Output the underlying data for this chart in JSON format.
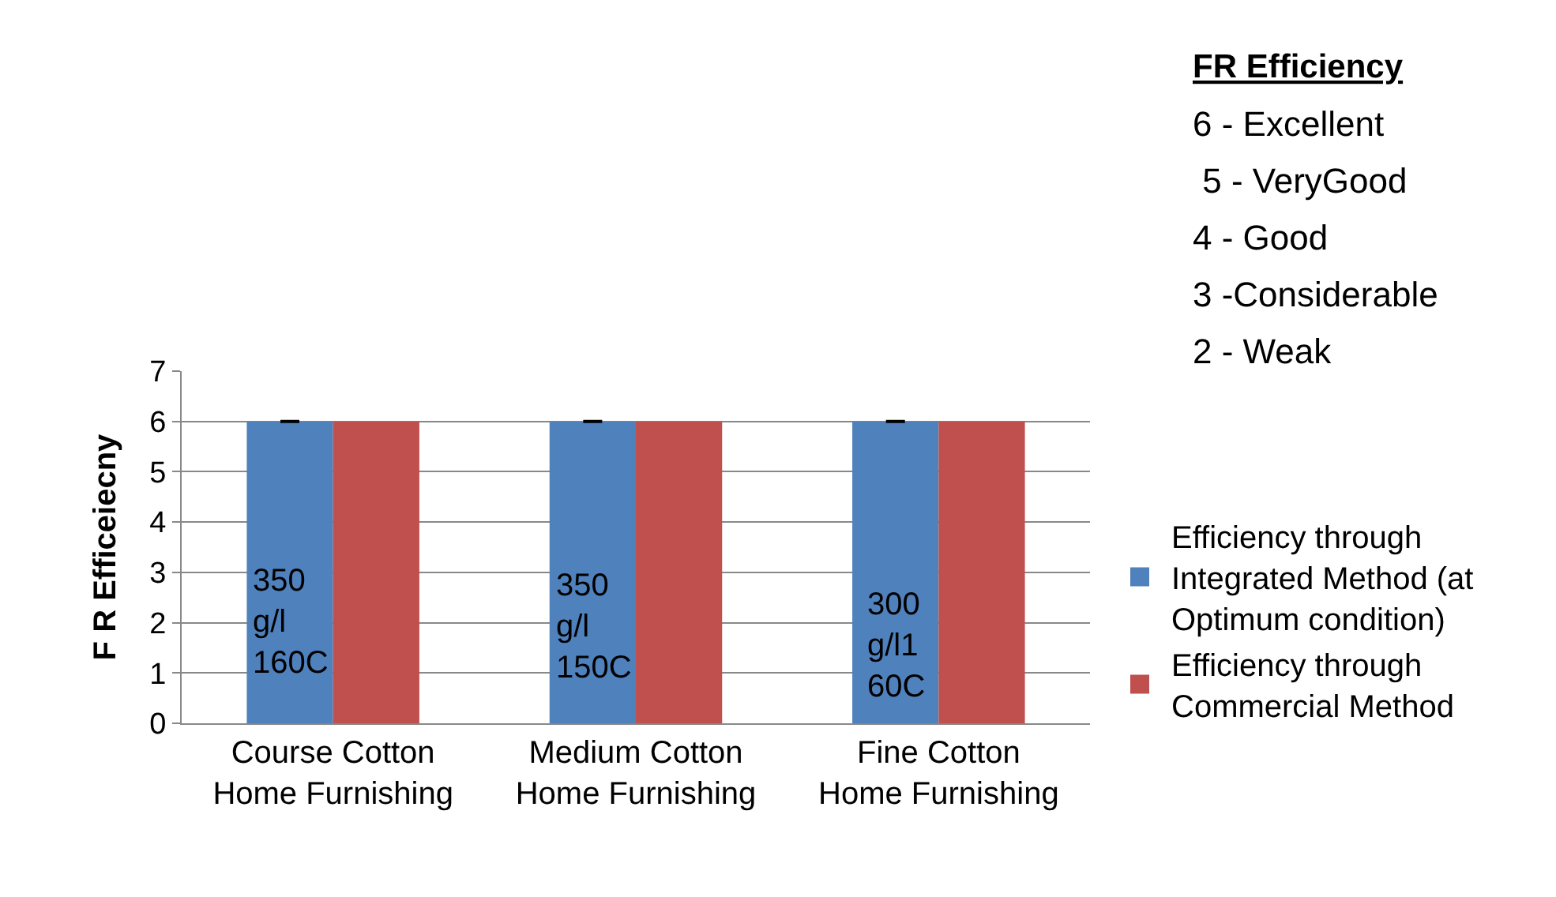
{
  "chart_data": {
    "type": "bar",
    "ylabel": "F R Efficeiecny",
    "categories": [
      "Course Cotton\nHome Furnishing",
      "Medium Cotton\nHome Furnishing",
      "Fine Cotton\nHome Furnishing"
    ],
    "series": [
      {
        "name": "Efficiency through\nIntegrated Method (at\nOptimum condition)",
        "color": "#4f81bd",
        "values": [
          6,
          6,
          6
        ],
        "errors": [
          0,
          0,
          0
        ]
      },
      {
        "name": "Efficiency through\nCommercial Method",
        "color": "#c0504d",
        "values": [
          6,
          6,
          6
        ]
      }
    ],
    "ylim": [
      0,
      7
    ],
    "yticks": [
      0,
      1,
      2,
      3,
      4,
      5,
      6,
      7
    ],
    "grid": "y",
    "legend": "right",
    "annotations": [
      {
        "text": "350\ng/l\n160C",
        "x": "Course Cotton\nHome Furnishing",
        "y": 2
      },
      {
        "text": "350\ng/l\n150C",
        "x": "Medium Cotton\nHome Furnishing",
        "y": 1.9
      },
      {
        "text": "300\ng/l1\n60C",
        "x": "Fine Cotton\nHome Furnishing",
        "y": 1.55
      },
      "FR Efficiency",
      "6 - Excellent",
      " 5 - VeryGood",
      "4 - Good",
      "3 -Considerable",
      "2 - Weak"
    ]
  }
}
